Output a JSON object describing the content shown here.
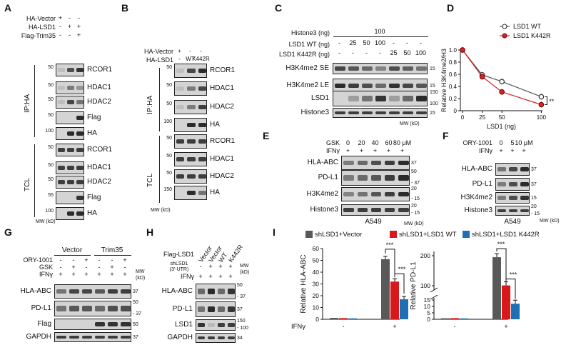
{
  "panels": {
    "A": {
      "label": "A",
      "conditions": [
        {
          "name": "HA-Vector",
          "marks": [
            "+",
            "-",
            "-"
          ]
        },
        {
          "name": "HA-LSD1",
          "marks": [
            "-",
            "+",
            "+"
          ]
        },
        {
          "name": "Flag-Trim35",
          "marks": [
            "-",
            "-",
            "+"
          ]
        }
      ],
      "group_labels": [
        "IP:HA",
        "TCL"
      ],
      "blots": [
        {
          "protein": "RCOR1",
          "mw": "50",
          "bands": [
            0.05,
            0.75,
            0.9
          ]
        },
        {
          "protein": "HDAC1",
          "mw": "50",
          "bands": [
            0.05,
            0.5,
            0.35
          ]
        },
        {
          "protein": "HDAC2",
          "mw": "50",
          "bands": [
            0.05,
            0.8,
            0.55
          ]
        },
        {
          "protein": "Flag",
          "mw": "50",
          "bands": [
            0,
            0,
            0.95
          ]
        },
        {
          "protein": "HA",
          "mw": "100",
          "bands": [
            0,
            0.95,
            0.95
          ]
        },
        {
          "protein": "RCOR1",
          "mw": "50",
          "bands": [
            0.85,
            0.85,
            0.85
          ]
        },
        {
          "protein": "HDAC1",
          "mw": "50",
          "bands": [
            0.85,
            0.85,
            0.85
          ]
        },
        {
          "protein": "HDAC2",
          "mw": "50",
          "bands": [
            0.85,
            0.85,
            0.85
          ]
        },
        {
          "protein": "Flag",
          "mw": "55",
          "bands": [
            0,
            0,
            0.9
          ]
        },
        {
          "protein": "HA",
          "mw": "100",
          "bands": [
            0,
            0.95,
            0.95
          ]
        }
      ],
      "mw_label": "MW (kD)"
    },
    "B": {
      "label": "B",
      "conditions": [
        {
          "name": "HA-Vector",
          "marks": [
            "+",
            "-",
            "-"
          ]
        },
        {
          "name": "HA-LSD1",
          "marks": [
            "-",
            "WT",
            "K442R"
          ]
        }
      ],
      "group_labels": [
        "IP:HA",
        "TCL"
      ],
      "blots": [
        {
          "protein": "RCOR1",
          "mw": "50",
          "bands": [
            0.05,
            0.8,
            0.95
          ]
        },
        {
          "protein": "HDAC1",
          "mw": "50",
          "bands": [
            0.05,
            0.5,
            0.8
          ]
        },
        {
          "protein": "HDAC2",
          "mw": "50",
          "bands": [
            0.05,
            0.5,
            0.85
          ]
        },
        {
          "protein": "HA",
          "mw": "100",
          "bands": [
            0,
            0.95,
            0.95
          ]
        },
        {
          "protein": "RCOR1",
          "mw": "50",
          "bands": [
            0.85,
            0.85,
            0.85
          ]
        },
        {
          "protein": "HDAC1",
          "mw": "50",
          "bands": [
            0.85,
            0.85,
            0.85
          ]
        },
        {
          "protein": "HDAC2",
          "mw": "50",
          "bands": [
            0.85,
            0.85,
            0.85
          ]
        },
        {
          "protein": "HA",
          "mw": "150",
          "bands": [
            0,
            0.95,
            0.55
          ]
        }
      ],
      "mw_label": "MW (kD)"
    },
    "C": {
      "label": "C",
      "histone_label": "Histone3 (ng)",
      "histone_value": "100",
      "conditions": [
        {
          "name": "LSD1 WT (ng)",
          "marks": [
            "-",
            "25",
            "50",
            "100",
            "-",
            "-",
            "-"
          ]
        },
        {
          "name": "LSD1 K442R (ng)",
          "marks": [
            "-",
            "-",
            "-",
            "-",
            "25",
            "50",
            "100"
          ]
        }
      ],
      "blots": [
        {
          "protein": "H3K4me2 SE",
          "mw": "15",
          "bands": [
            0.8,
            0.7,
            0.6,
            0.45,
            0.75,
            0.65,
            0.55
          ]
        },
        {
          "protein": "H3K4me2 LE",
          "mw": "15",
          "bands": [
            0.95,
            0.85,
            0.75,
            0.6,
            0.9,
            0.8,
            0.7
          ]
        },
        {
          "protein": "LSD1",
          "mw": "150",
          "mw2": "100",
          "bands": [
            0,
            0.3,
            0.55,
            0.9,
            0.3,
            0.6,
            0.95
          ]
        },
        {
          "protein": "Histone3",
          "mw": "15",
          "bands": [
            0.85,
            0.85,
            0.85,
            0.85,
            0.85,
            0.85,
            0.85
          ]
        }
      ],
      "mw_label": "MW (kD)"
    },
    "D": {
      "label": "D",
      "significance": "**"
    },
    "E": {
      "label": "E",
      "conditions": [
        {
          "name": "GSK",
          "marks": [
            "0",
            "20",
            "40",
            "60",
            "80 μM"
          ]
        },
        {
          "name": "IFNγ",
          "marks": [
            "+",
            "+",
            "+",
            "+",
            "+"
          ]
        }
      ],
      "blots": [
        {
          "protein": "HLA-ABC",
          "mw": "37",
          "bands": [
            0.5,
            0.6,
            0.75,
            0.85,
            0.95
          ]
        },
        {
          "protein": "PD-L1",
          "mw": "50",
          "mw2": "37",
          "bands": [
            0.5,
            0.6,
            0.7,
            0.85,
            0.95
          ]
        },
        {
          "protein": "H3K4me2",
          "mw": "20",
          "mw2": "15",
          "bands": [
            0.45,
            0.55,
            0.7,
            0.85,
            0.95
          ]
        },
        {
          "protein": "Histone3",
          "mw": "20",
          "mw2": "15",
          "bands": [
            0.85,
            0.85,
            0.85,
            0.85,
            0.85
          ]
        }
      ],
      "cell_line": "A549",
      "mw_label": "MW (kD)"
    },
    "F": {
      "label": "F",
      "conditions": [
        {
          "name": "ORY-1001",
          "marks": [
            "0",
            "5",
            "10 μM"
          ]
        },
        {
          "name": "IFNγ",
          "marks": [
            "+",
            "+",
            "+"
          ]
        }
      ],
      "blots": [
        {
          "protein": "HLA-ABC",
          "mw": "37",
          "bands": [
            0.55,
            0.8,
            0.95
          ]
        },
        {
          "protein": "PD-L1",
          "mw": "37",
          "bands": [
            0.5,
            0.75,
            0.95
          ]
        },
        {
          "protein": "H3K4me2",
          "mw": "15",
          "bands": [
            0.5,
            0.75,
            0.9
          ]
        },
        {
          "protein": "Histone3",
          "mw": "20",
          "mw2": "15",
          "bands": [
            0.85,
            0.85,
            0.85
          ]
        }
      ],
      "cell_line": "A549",
      "mw_label": "MW (kD)"
    },
    "G": {
      "label": "G",
      "groups": [
        "Vector",
        "Trim35"
      ],
      "conditions": [
        {
          "name": "ORY-1001",
          "marks": [
            "-",
            "-",
            "+",
            "-",
            "-",
            "+"
          ]
        },
        {
          "name": "GSK",
          "marks": [
            "-",
            "+",
            "-",
            "-",
            "+",
            "-"
          ]
        },
        {
          "name": "IFNγ",
          "marks": [
            "+",
            "+",
            "+",
            "+",
            "+",
            "+"
          ]
        }
      ],
      "blots": [
        {
          "protein": "HLA-ABC",
          "mw": "37",
          "bands": [
            0.55,
            0.8,
            0.8,
            0.7,
            0.85,
            0.85
          ]
        },
        {
          "protein": "PD-L1",
          "mw": "50",
          "mw2": "37",
          "bands": [
            0.55,
            0.7,
            0.7,
            0.6,
            0.75,
            0.75
          ]
        },
        {
          "protein": "Flag",
          "mw": "50",
          "bands": [
            0,
            0,
            0,
            0.9,
            0.9,
            0.9
          ]
        },
        {
          "protein": "GAPDH",
          "mw": "37",
          "bands": [
            0.85,
            0.85,
            0.85,
            0.85,
            0.85,
            0.85
          ]
        }
      ],
      "mw_label": "MW\n(kD)"
    },
    "H": {
      "label": "H",
      "lane_labels": [
        "Vector",
        "Vector",
        "WT",
        "K442R"
      ],
      "conditions": [
        {
          "name": "Flag-LSD1",
          "marks": []
        },
        {
          "name": "shLSD1\n(3'-UTR)",
          "marks": [
            "-",
            "+",
            "+",
            "+"
          ]
        },
        {
          "name": "IFNγ",
          "marks": [
            "+",
            "+",
            "+",
            "+"
          ]
        }
      ],
      "blots": [
        {
          "protein": "HLA-ABC",
          "mw": "50",
          "mw2": "37",
          "bands": [
            0.6,
            0.95,
            0.6,
            0.9
          ]
        },
        {
          "protein": "PD-L1",
          "mw": "37",
          "bands": [
            0.55,
            0.95,
            0.6,
            0.9
          ]
        },
        {
          "protein": "LSD1",
          "mw": "150",
          "mw2": "100",
          "bands": [
            0.9,
            0.15,
            0.85,
            0.85
          ]
        },
        {
          "protein": "GAPDH",
          "mw": "34",
          "bands": [
            0.85,
            0.85,
            0.85,
            0.85
          ]
        }
      ],
      "mw_label": "MW\n(kD)"
    },
    "I": {
      "label": "I",
      "significance": [
        "***",
        "***",
        "***",
        "***"
      ]
    }
  },
  "chart_data": [
    {
      "type": "line",
      "panel": "D",
      "xlabel": "LSD1 (ng)",
      "ylabel": "Relative H3K4me2/H3",
      "x": [
        0,
        25,
        50,
        100
      ],
      "xticks": [
        "0",
        "25",
        "50",
        "100"
      ],
      "ylim": [
        0,
        1.0
      ],
      "yticks": [
        "0",
        "0.2",
        "0.4",
        "0.6",
        "0.8",
        "1.0"
      ],
      "legend_position": "top-right",
      "series": [
        {
          "name": "LSD1 WT",
          "values": [
            1.0,
            0.59,
            0.48,
            0.23
          ],
          "color": "#555555",
          "marker": "open-circle"
        },
        {
          "name": "LSD1 K442R",
          "values": [
            1.0,
            0.56,
            0.31,
            0.1
          ],
          "color": "#d62728",
          "marker": "filled-circle"
        }
      ],
      "annotation": "**"
    },
    {
      "type": "bar",
      "panel": "I-left",
      "ylabel": "Relative HLA-ABC",
      "categories": [
        "-",
        "+"
      ],
      "xgroup_label": "IFNγ",
      "ylim": [
        0,
        60
      ],
      "yticks": [
        "0",
        "10",
        "20",
        "30",
        "40",
        "50",
        "60"
      ],
      "legend_position": "top",
      "series": [
        {
          "name": "shLSD1+Vector",
          "values": [
            1.2,
            51
          ],
          "color": "#595959"
        },
        {
          "name": "shLSD1+LSD1 WT",
          "values": [
            1.0,
            32
          ],
          "color": "#d7191c"
        },
        {
          "name": "shLSD1+LSD1 K442R",
          "values": [
            0.8,
            17
          ],
          "color": "#1f6fb4"
        }
      ],
      "annotations": [
        "***",
        "***"
      ]
    },
    {
      "type": "bar",
      "panel": "I-right",
      "ylabel": "Relative PD-L1",
      "categories": [
        "-",
        "+"
      ],
      "xgroup_label": "IFNγ",
      "broken_axis": true,
      "yticks": [
        "0",
        "5",
        "10",
        "15",
        "100",
        "200"
      ],
      "legend_position": "top",
      "series": [
        {
          "name": "shLSD1+Vector",
          "values": [
            0.8,
            195
          ],
          "color": "#595959"
        },
        {
          "name": "shLSD1+LSD1 WT",
          "values": [
            0.9,
            101
          ],
          "color": "#d7191c"
        },
        {
          "name": "shLSD1+LSD1 K442R",
          "values": [
            0.7,
            40
          ],
          "color": "#1f6fb4"
        }
      ],
      "annotations": [
        "***",
        "***"
      ]
    }
  ]
}
